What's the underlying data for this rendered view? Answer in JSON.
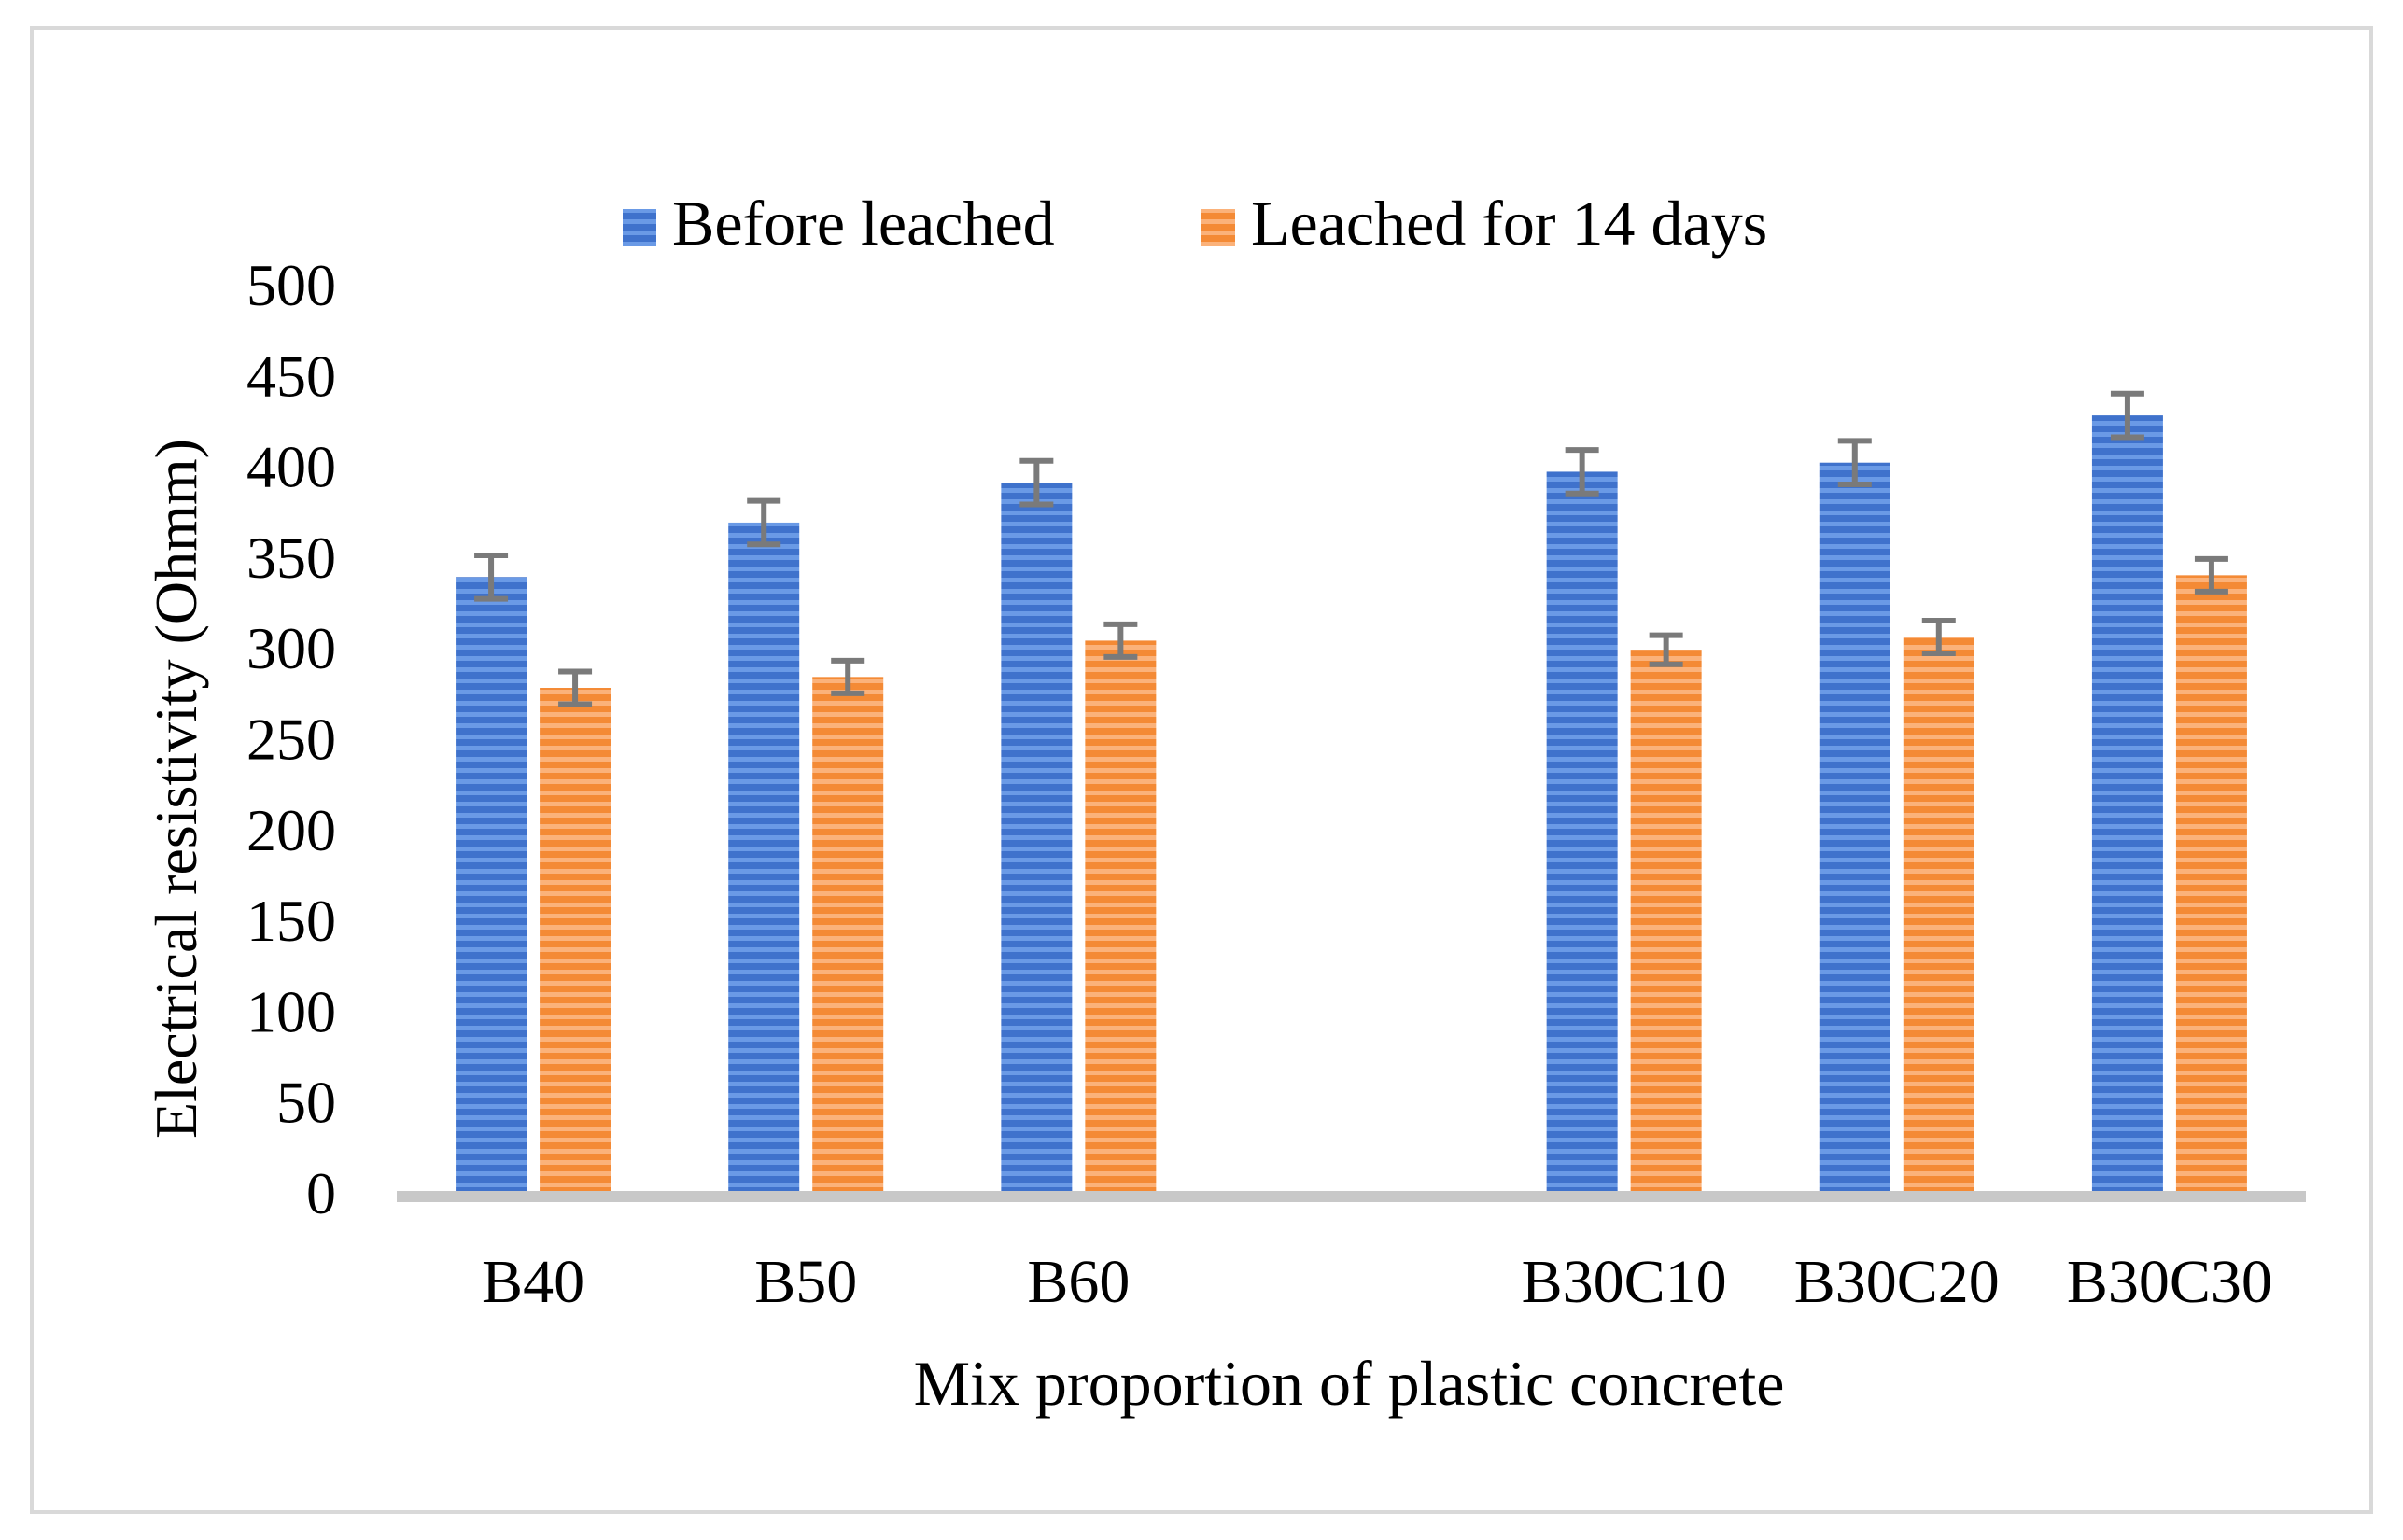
{
  "chart_data": {
    "type": "bar",
    "title": "",
    "xlabel": "Mix proportion of plastic concrete",
    "ylabel": "Electrical resistivity (Ohmm)",
    "ylim": [
      0,
      500
    ],
    "yticks": [
      "0",
      "50",
      "100",
      "150",
      "200",
      "250",
      "300",
      "350",
      "400",
      "450",
      "500"
    ],
    "grid": false,
    "legend_position": "top",
    "categories": [
      "B40",
      "B50",
      "B60",
      "",
      "B30C10",
      "B30C20",
      "B30C30"
    ],
    "series": [
      {
        "name": "Before leached",
        "color": "#4a7fd4",
        "values": [
          339,
          369,
          391,
          null,
          397,
          402,
          428
        ],
        "errors": [
          12,
          12,
          12,
          null,
          12,
          12,
          12
        ]
      },
      {
        "name": "Leached for 14 days",
        "color": "#f5913e",
        "values": [
          278,
          284,
          304,
          null,
          299,
          306,
          340
        ],
        "errors": [
          9,
          9,
          9,
          null,
          8,
          9,
          9
        ]
      }
    ]
  }
}
